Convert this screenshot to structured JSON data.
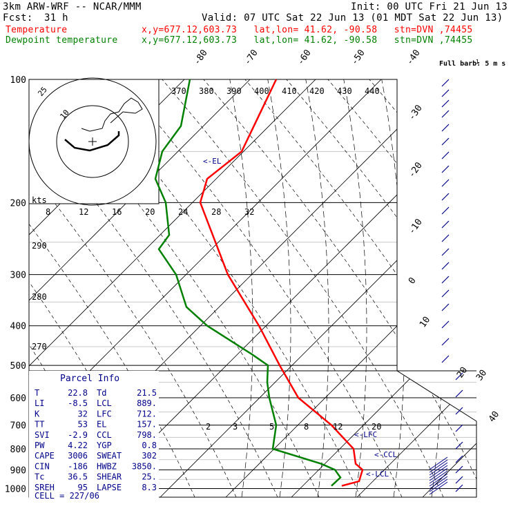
{
  "header": {
    "model": "3km ARW-WRF -- NCAR/MMM",
    "init": "Init: 00 UTC Fri 21 Jun 13",
    "fcst_label": "Fcst:",
    "fcst_value": "31 h",
    "valid": "Valid: 07 UTC Sat 22 Jun 13 (01 MDT Sat 22 Jun 13)",
    "temp_label": "Temperature",
    "temp_loc": "x,y=677.12,603.73   lat,lon= 41.62, -90.58   stn=DVN ,74455",
    "dew_label": "Dewpoint temperature",
    "dew_loc": "x,y=677.12,603.73   lat,lon= 41.62, -90.58   stn=DVN ,74455"
  },
  "colors": {
    "temperature": "#ff0000",
    "dewpoint": "#008000",
    "wind": "#00008b",
    "axes": "#000000"
  },
  "chart_data": {
    "type": "line",
    "title": "",
    "ylabel": "",
    "pressure_ticks": [
      100,
      200,
      300,
      400,
      500,
      600,
      700,
      800,
      900,
      1000
    ],
    "skewed_temperature_labels": [
      -80,
      -70,
      -60,
      -50,
      -40,
      -30,
      -20,
      -10,
      0,
      10,
      20,
      30,
      40
    ],
    "theta_labels": [
      370,
      380,
      390,
      400,
      410,
      420,
      430,
      440
    ],
    "theta_labels_lower": [
      290,
      280,
      270
    ],
    "mixing_ratio_labels": [
      "2",
      "3",
      "5",
      "8",
      "12",
      "20"
    ],
    "hodograph": {
      "units_label": "kts",
      "ring_labels": [
        "25",
        "10"
      ],
      "speed_scale_labels": [
        "8",
        "12",
        "16",
        "20",
        "24",
        "28",
        "32"
      ]
    },
    "barb_legend": "Full barb: 5 m s",
    "barb_legend_exponent": "-1",
    "level_markers": [
      "<-EL",
      "<-LFC",
      "<-CCL",
      "<-LCL"
    ],
    "series": [
      {
        "name": "Temperature",
        "points": [
          [
            100,
            400
          ],
          [
            150,
            350
          ],
          [
            175,
            300
          ],
          [
            200,
            290
          ],
          [
            300,
            330
          ],
          [
            400,
            375
          ],
          [
            500,
            405
          ],
          [
            600,
            432
          ],
          [
            700,
            480
          ],
          [
            800,
            512
          ],
          [
            870,
            515
          ],
          [
            900,
            525
          ],
          [
            960,
            520
          ],
          [
            985,
            495
          ]
        ]
      },
      {
        "name": "Dewpoint temperature",
        "points": [
          [
            100,
            275
          ],
          [
            130,
            262
          ],
          [
            150,
            235
          ],
          [
            175,
            225
          ],
          [
            200,
            240
          ],
          [
            240,
            245
          ],
          [
            260,
            230
          ],
          [
            300,
            255
          ],
          [
            360,
            270
          ],
          [
            400,
            300
          ],
          [
            470,
            365
          ],
          [
            500,
            388
          ],
          [
            550,
            387
          ],
          [
            600,
            390
          ],
          [
            700,
            400
          ],
          [
            800,
            395
          ],
          [
            870,
            465
          ],
          [
            900,
            485
          ],
          [
            940,
            493
          ],
          [
            985,
            480
          ]
        ]
      }
    ]
  },
  "parcel_info": {
    "title": "Parcel Info",
    "rows": [
      {
        "l1": "T",
        "v1": "22.8",
        "l2": "Td",
        "v2": "21.5"
      },
      {
        "l1": "LI",
        "v1": "-8.5",
        "l2": "LCL",
        "v2": "889."
      },
      {
        "l1": "K",
        "v1": "32",
        "l2": "LFC",
        "v2": "712."
      },
      {
        "l1": "TT",
        "v1": "53",
        "l2": "EL",
        "v2": "157."
      },
      {
        "l1": "SVI",
        "v1": "-2.9",
        "l2": "CCL",
        "v2": "798."
      },
      {
        "l1": "PW",
        "v1": "4.22",
        "l2": "YGP",
        "v2": "0.8"
      },
      {
        "l1": "CAPE",
        "v1": "3006",
        "l2": "SWEAT",
        "v2": "302"
      },
      {
        "l1": "CIN",
        "v1": "-186",
        "l2": "HWBZ",
        "v2": "3850."
      },
      {
        "l1": "Tc",
        "v1": "36.5",
        "l2": "SHEAR",
        "v2": "25."
      },
      {
        "l1": "SREH",
        "v1": "95",
        "l2": "LAPSE",
        "v2": "8.3"
      }
    ],
    "cell": "CELL = 227/06"
  }
}
